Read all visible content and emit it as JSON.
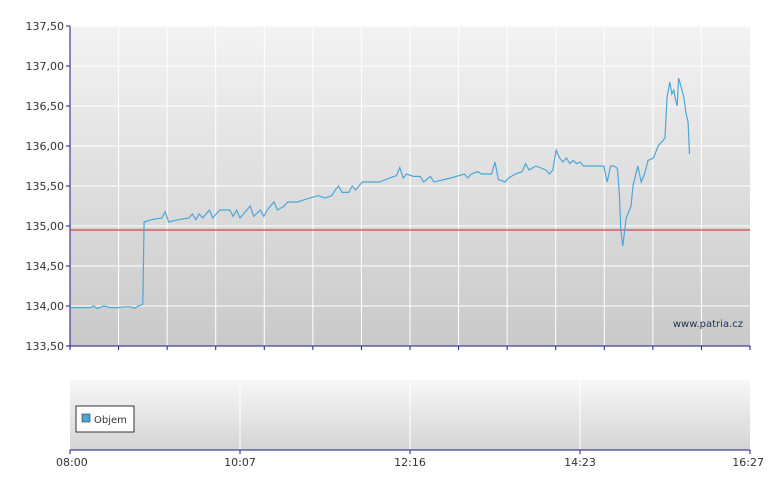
{
  "chart_data": [
    {
      "type": "line",
      "ylim": [
        133.5,
        137.5
      ],
      "y_ticks": [
        "133,50",
        "134,00",
        "134,50",
        "135,00",
        "135,50",
        "136,00",
        "136,50",
        "137,00",
        "137,50"
      ],
      "y_tick_values": [
        133.5,
        134.0,
        134.5,
        135.0,
        135.5,
        136.0,
        136.5,
        137.0,
        137.5
      ],
      "reference_line": 134.95,
      "watermark": "www.patria.cz",
      "colors": {
        "line": "#4aa8d8",
        "reference": "#cc2222",
        "axis": "#1a1a80",
        "grid": "#ffffff"
      },
      "series": [
        {
          "values": [
            [
              0.0,
              133.98
            ],
            [
              0.02,
              133.98
            ],
            [
              0.03,
              133.98
            ],
            [
              0.035,
              134.0
            ],
            [
              0.04,
              133.97
            ],
            [
              0.05,
              134.0
            ],
            [
              0.06,
              133.98
            ],
            [
              0.07,
              133.98
            ],
            [
              0.08,
              133.99
            ],
            [
              0.09,
              133.99
            ],
            [
              0.095,
              133.97
            ],
            [
              0.1,
              134.0
            ],
            [
              0.107,
              134.02
            ],
            [
              0.109,
              135.05
            ],
            [
              0.12,
              135.08
            ],
            [
              0.135,
              135.1
            ],
            [
              0.14,
              135.18
            ],
            [
              0.145,
              135.05
            ],
            [
              0.16,
              135.08
            ],
            [
              0.175,
              135.1
            ],
            [
              0.18,
              135.15
            ],
            [
              0.185,
              135.08
            ],
            [
              0.19,
              135.15
            ],
            [
              0.195,
              135.1
            ],
            [
              0.205,
              135.2
            ],
            [
              0.21,
              135.1
            ],
            [
              0.22,
              135.2
            ],
            [
              0.235,
              135.2
            ],
            [
              0.24,
              135.12
            ],
            [
              0.245,
              135.2
            ],
            [
              0.25,
              135.1
            ],
            [
              0.255,
              135.15
            ],
            [
              0.265,
              135.25
            ],
            [
              0.27,
              135.12
            ],
            [
              0.28,
              135.2
            ],
            [
              0.285,
              135.12
            ],
            [
              0.29,
              135.2
            ],
            [
              0.3,
              135.3
            ],
            [
              0.305,
              135.2
            ],
            [
              0.315,
              135.25
            ],
            [
              0.32,
              135.3
            ],
            [
              0.335,
              135.3
            ],
            [
              0.345,
              135.33
            ],
            [
              0.365,
              135.38
            ],
            [
              0.375,
              135.35
            ],
            [
              0.385,
              135.38
            ],
            [
              0.39,
              135.45
            ],
            [
              0.395,
              135.5
            ],
            [
              0.4,
              135.42
            ],
            [
              0.405,
              135.42
            ],
            [
              0.41,
              135.42
            ],
            [
              0.415,
              135.5
            ],
            [
              0.42,
              135.45
            ],
            [
              0.43,
              135.55
            ],
            [
              0.455,
              135.55
            ],
            [
              0.47,
              135.6
            ],
            [
              0.48,
              135.63
            ],
            [
              0.485,
              135.73
            ],
            [
              0.49,
              135.6
            ],
            [
              0.495,
              135.65
            ],
            [
              0.505,
              135.62
            ],
            [
              0.515,
              135.62
            ],
            [
              0.52,
              135.55
            ],
            [
              0.53,
              135.62
            ],
            [
              0.535,
              135.55
            ],
            [
              0.56,
              135.6
            ],
            [
              0.58,
              135.65
            ],
            [
              0.585,
              135.6
            ],
            [
              0.59,
              135.65
            ],
            [
              0.6,
              135.68
            ],
            [
              0.605,
              135.65
            ],
            [
              0.62,
              135.65
            ],
            [
              0.625,
              135.8
            ],
            [
              0.63,
              135.58
            ],
            [
              0.64,
              135.55
            ],
            [
              0.645,
              135.6
            ],
            [
              0.655,
              135.65
            ],
            [
              0.665,
              135.68
            ],
            [
              0.67,
              135.78
            ],
            [
              0.675,
              135.7
            ],
            [
              0.685,
              135.75
            ],
            [
              0.7,
              135.7
            ],
            [
              0.705,
              135.65
            ],
            [
              0.71,
              135.7
            ],
            [
              0.715,
              135.95
            ],
            [
              0.72,
              135.85
            ],
            [
              0.725,
              135.8
            ],
            [
              0.73,
              135.85
            ],
            [
              0.735,
              135.78
            ],
            [
              0.74,
              135.82
            ],
            [
              0.745,
              135.78
            ],
            [
              0.75,
              135.8
            ],
            [
              0.755,
              135.75
            ],
            [
              0.77,
              135.75
            ],
            [
              0.785,
              135.75
            ],
            [
              0.79,
              135.55
            ],
            [
              0.795,
              135.75
            ],
            [
              0.8,
              135.75
            ],
            [
              0.805,
              135.72
            ],
            [
              0.808,
              135.4
            ],
            [
              0.81,
              134.95
            ],
            [
              0.813,
              134.75
            ],
            [
              0.818,
              135.1
            ],
            [
              0.825,
              135.25
            ],
            [
              0.828,
              135.5
            ],
            [
              0.835,
              135.75
            ],
            [
              0.84,
              135.55
            ],
            [
              0.845,
              135.65
            ],
            [
              0.85,
              135.82
            ],
            [
              0.858,
              135.85
            ],
            [
              0.865,
              136.0
            ],
            [
              0.87,
              136.05
            ],
            [
              0.875,
              136.1
            ],
            [
              0.878,
              136.6
            ],
            [
              0.882,
              136.8
            ],
            [
              0.885,
              136.65
            ],
            [
              0.888,
              136.7
            ],
            [
              0.89,
              136.6
            ],
            [
              0.893,
              136.5
            ],
            [
              0.895,
              136.85
            ],
            [
              0.9,
              136.7
            ],
            [
              0.903,
              136.6
            ],
            [
              0.906,
              136.4
            ],
            [
              0.909,
              136.3
            ],
            [
              0.911,
              135.9
            ]
          ]
        }
      ]
    },
    {
      "type": "bar",
      "legend": [
        "Objem"
      ],
      "x_ticks": [
        "08:00",
        "10:07",
        "12:16",
        "14:23",
        "16:27"
      ],
      "colors": {
        "legend_swatch": "#4aa8d8"
      }
    }
  ]
}
